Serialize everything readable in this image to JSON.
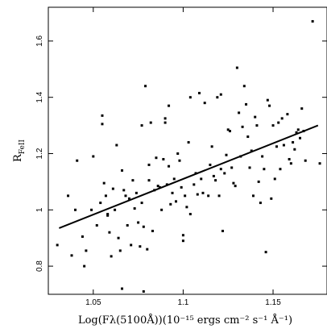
{
  "chart_data": {
    "type": "scatter",
    "xlabel": "Log(Fλ(5100Å))(10⁻¹⁵ ergs cm⁻² s⁻¹ Å⁻¹)",
    "ylabel": "R",
    "ylabel_subscript": "FeII",
    "xlim": [
      1.025,
      1.18
    ],
    "ylim": [
      0.7,
      1.72
    ],
    "xticks": [
      1.05,
      1.1,
      1.15
    ],
    "xtick_labels": [
      "1.05",
      "1.1",
      "1.15"
    ],
    "yticks": [
      0.8,
      1.0,
      1.2,
      1.4,
      1.6
    ],
    "ytick_labels": [
      "0.8",
      "1",
      "1.2",
      "1.4",
      "1.6"
    ],
    "grid": false,
    "points": [
      [
        1.03,
        0.875
      ],
      [
        1.036,
        1.05
      ],
      [
        1.038,
        0.838
      ],
      [
        1.04,
        1.0
      ],
      [
        1.041,
        1.175
      ],
      [
        1.044,
        0.905
      ],
      [
        1.045,
        0.8
      ],
      [
        1.046,
        0.855
      ],
      [
        1.049,
        1.0
      ],
      [
        1.05,
        1.19
      ],
      [
        1.052,
        0.945
      ],
      [
        1.054,
        1.025
      ],
      [
        1.055,
        1.335
      ],
      [
        1.055,
        1.305
      ],
      [
        1.056,
        1.095
      ],
      [
        1.057,
        1.05
      ],
      [
        1.058,
        0.98
      ],
      [
        1.058,
        0.985
      ],
      [
        1.059,
        0.92
      ],
      [
        1.06,
        0.835
      ],
      [
        1.061,
        1.075
      ],
      [
        1.062,
        1.0
      ],
      [
        1.063,
        1.23
      ],
      [
        1.064,
        0.9
      ],
      [
        1.065,
        0.855
      ],
      [
        1.066,
        0.72
      ],
      [
        1.066,
        1.14
      ],
      [
        1.067,
        1.07
      ],
      [
        1.068,
        1.05
      ],
      [
        1.069,
        0.945
      ],
      [
        1.07,
        1.04
      ],
      [
        1.071,
        0.875
      ],
      [
        1.072,
        1.105
      ],
      [
        1.073,
        1.005
      ],
      [
        1.074,
        1.06
      ],
      [
        1.075,
        0.955
      ],
      [
        1.076,
        0.87
      ],
      [
        1.077,
        1.3
      ],
      [
        1.077,
        1.025
      ],
      [
        1.078,
        0.94
      ],
      [
        1.078,
        0.71
      ],
      [
        1.079,
        1.44
      ],
      [
        1.08,
        0.86
      ],
      [
        1.081,
        1.16
      ],
      [
        1.081,
        1.105
      ],
      [
        1.082,
        1.31
      ],
      [
        1.083,
        0.925
      ],
      [
        1.084,
        1.07
      ],
      [
        1.085,
        1.185
      ],
      [
        1.086,
        1.085
      ],
      [
        1.087,
        1.08
      ],
      [
        1.088,
        1.0
      ],
      [
        1.089,
        1.18
      ],
      [
        1.09,
        1.31
      ],
      [
        1.09,
        1.325
      ],
      [
        1.091,
        1.09
      ],
      [
        1.092,
        1.37
      ],
      [
        1.092,
        1.155
      ],
      [
        1.093,
        1.02
      ],
      [
        1.094,
        1.06
      ],
      [
        1.095,
        1.11
      ],
      [
        1.096,
        1.03
      ],
      [
        1.097,
        1.2
      ],
      [
        1.098,
        1.175
      ],
      [
        1.099,
        1.08
      ],
      [
        1.1,
        0.91
      ],
      [
        1.1,
        0.89
      ],
      [
        1.101,
        1.05
      ],
      [
        1.102,
        1.01
      ],
      [
        1.103,
        1.24
      ],
      [
        1.104,
        0.985
      ],
      [
        1.104,
        1.4
      ],
      [
        1.106,
        1.09
      ],
      [
        1.107,
        1.13
      ],
      [
        1.108,
        1.055
      ],
      [
        1.109,
        1.415
      ],
      [
        1.11,
        1.11
      ],
      [
        1.111,
        1.06
      ],
      [
        1.112,
        1.38
      ],
      [
        1.114,
        1.05
      ],
      [
        1.115,
        1.16
      ],
      [
        1.116,
        1.225
      ],
      [
        1.117,
        1.12
      ],
      [
        1.118,
        1.105
      ],
      [
        1.119,
        1.4
      ],
      [
        1.12,
        1.05
      ],
      [
        1.121,
        1.41
      ],
      [
        1.121,
        1.145
      ],
      [
        1.122,
        0.925
      ],
      [
        1.123,
        1.13
      ],
      [
        1.124,
        1.195
      ],
      [
        1.125,
        1.285
      ],
      [
        1.126,
        1.28
      ],
      [
        1.127,
        1.15
      ],
      [
        1.128,
        1.095
      ],
      [
        1.129,
        1.085
      ],
      [
        1.13,
        1.505
      ],
      [
        1.131,
        1.345
      ],
      [
        1.132,
        1.19
      ],
      [
        1.133,
        1.295
      ],
      [
        1.134,
        1.44
      ],
      [
        1.135,
        1.375
      ],
      [
        1.136,
        1.26
      ],
      [
        1.137,
        1.15
      ],
      [
        1.138,
        1.21
      ],
      [
        1.139,
        1.05
      ],
      [
        1.14,
        1.33
      ],
      [
        1.141,
        1.3
      ],
      [
        1.142,
        1.1
      ],
      [
        1.143,
        1.025
      ],
      [
        1.144,
        1.19
      ],
      [
        1.145,
        1.145
      ],
      [
        1.146,
        0.85
      ],
      [
        1.147,
        1.39
      ],
      [
        1.148,
        1.37
      ],
      [
        1.149,
        1.04
      ],
      [
        1.15,
        1.3
      ],
      [
        1.151,
        1.11
      ],
      [
        1.152,
        1.225
      ],
      [
        1.153,
        1.31
      ],
      [
        1.154,
        1.145
      ],
      [
        1.155,
        1.325
      ],
      [
        1.156,
        1.23
      ],
      [
        1.158,
        1.34
      ],
      [
        1.159,
        1.18
      ],
      [
        1.16,
        1.165
      ],
      [
        1.161,
        1.24
      ],
      [
        1.162,
        1.215
      ],
      [
        1.163,
        1.275
      ],
      [
        1.164,
        1.285
      ],
      [
        1.165,
        1.255
      ],
      [
        1.166,
        1.36
      ],
      [
        1.167,
        1.28
      ],
      [
        1.168,
        1.175
      ],
      [
        1.172,
        1.67
      ],
      [
        1.176,
        1.165
      ]
    ],
    "fit_line": {
      "x": [
        1.031,
        1.175
      ],
      "y": [
        0.935,
        1.3
      ]
    }
  }
}
